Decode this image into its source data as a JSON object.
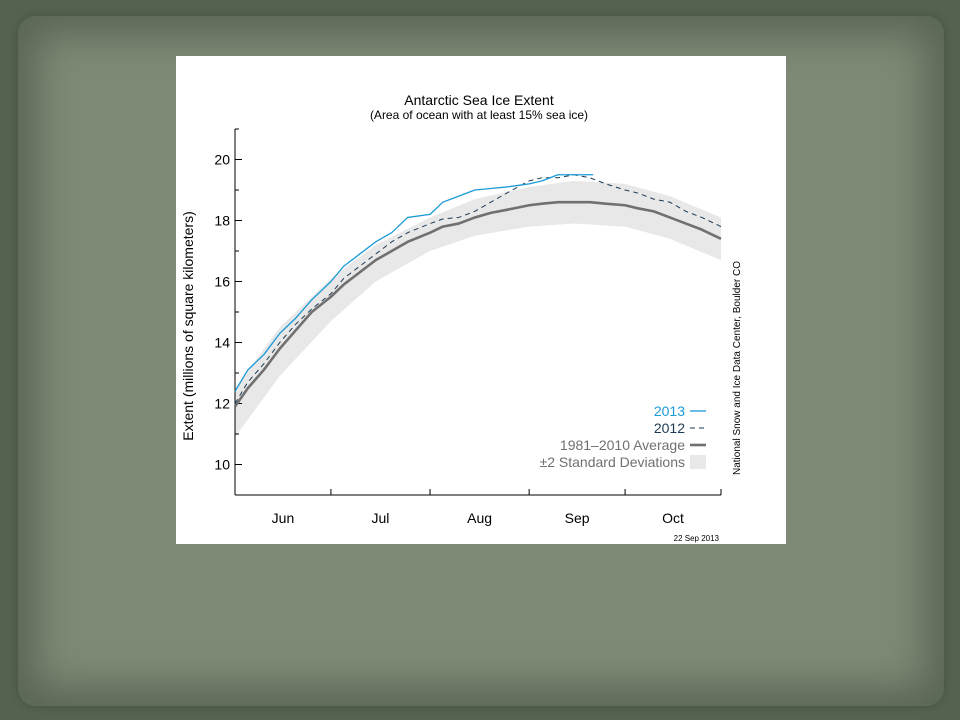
{
  "chart_data": {
    "type": "line",
    "title": "Antarctic Sea Ice Extent",
    "subtitle": "(Area of ocean with at least 15% sea ice)",
    "ylabel": "Extent (millions of square kilometers)",
    "xlabel": "",
    "ylim": [
      9,
      21
    ],
    "y_ticks": [
      10,
      12,
      14,
      16,
      18,
      20
    ],
    "x_months": [
      "Jun",
      "Jul",
      "Aug",
      "Sep",
      "Oct"
    ],
    "date_label": "22 Sep 2013",
    "source_label": "National Snow and Ice Data Center, Boulder CO",
    "legend_position": "bottom-right",
    "grid": false,
    "series": [
      {
        "name": "2013",
        "style": "solid",
        "color": "#1a9ad6",
        "x": [
          "06-01",
          "06-05",
          "06-10",
          "06-15",
          "06-20",
          "06-25",
          "07-01",
          "07-05",
          "07-10",
          "07-15",
          "07-20",
          "07-25",
          "08-01",
          "08-05",
          "08-10",
          "08-15",
          "08-20",
          "08-25",
          "09-01",
          "09-05",
          "09-10",
          "09-15",
          "09-21"
        ],
        "values": [
          12.4,
          13.1,
          13.6,
          14.3,
          14.8,
          15.4,
          16.0,
          16.5,
          16.9,
          17.3,
          17.6,
          18.1,
          18.2,
          18.6,
          18.8,
          19.0,
          19.05,
          19.1,
          19.2,
          19.3,
          19.5,
          19.5,
          19.5
        ]
      },
      {
        "name": "2012",
        "style": "dashed",
        "color": "#1e3a55",
        "x": [
          "06-01",
          "06-05",
          "06-10",
          "06-15",
          "06-20",
          "06-25",
          "07-01",
          "07-05",
          "07-10",
          "07-15",
          "07-20",
          "07-25",
          "08-01",
          "08-05",
          "08-10",
          "08-15",
          "08-20",
          "08-25",
          "09-01",
          "09-05",
          "09-10",
          "09-15",
          "09-20",
          "09-25",
          "10-01",
          "10-05",
          "10-10",
          "10-15",
          "10-20",
          "10-25",
          "10-31"
        ],
        "values": [
          12.0,
          12.7,
          13.3,
          14.0,
          14.6,
          15.1,
          15.6,
          16.1,
          16.5,
          16.9,
          17.3,
          17.6,
          17.9,
          18.05,
          18.1,
          18.3,
          18.6,
          18.9,
          19.3,
          19.4,
          19.4,
          19.5,
          19.4,
          19.2,
          19.0,
          18.9,
          18.7,
          18.6,
          18.3,
          18.1,
          17.8
        ]
      },
      {
        "name": "1981–2010 Average",
        "style": "solid",
        "color": "#707070",
        "x": [
          "06-01",
          "06-05",
          "06-10",
          "06-15",
          "06-20",
          "06-25",
          "07-01",
          "07-05",
          "07-10",
          "07-15",
          "07-20",
          "07-25",
          "08-01",
          "08-05",
          "08-10",
          "08-15",
          "08-20",
          "08-25",
          "09-01",
          "09-05",
          "09-10",
          "09-15",
          "09-20",
          "09-25",
          "10-01",
          "10-05",
          "10-10",
          "10-15",
          "10-20",
          "10-25",
          "10-31"
        ],
        "values": [
          11.9,
          12.5,
          13.1,
          13.8,
          14.4,
          15.0,
          15.5,
          15.9,
          16.3,
          16.7,
          17.0,
          17.3,
          17.6,
          17.8,
          17.9,
          18.1,
          18.25,
          18.35,
          18.5,
          18.55,
          18.6,
          18.6,
          18.6,
          18.55,
          18.5,
          18.4,
          18.3,
          18.1,
          17.9,
          17.7,
          17.4
        ]
      }
    ],
    "band": {
      "name": "±2 Standard Deviations",
      "color": "#e8e8e8",
      "x": [
        "06-01",
        "06-15",
        "07-01",
        "07-15",
        "08-01",
        "08-15",
        "09-01",
        "09-15",
        "10-01",
        "10-15",
        "10-31"
      ],
      "upper": [
        12.5,
        14.5,
        16.1,
        17.2,
        18.1,
        18.7,
        19.1,
        19.3,
        19.2,
        18.8,
        18.1
      ],
      "lower": [
        10.9,
        12.9,
        14.7,
        16.0,
        17.0,
        17.5,
        17.8,
        17.9,
        17.8,
        17.4,
        16.7
      ]
    }
  }
}
